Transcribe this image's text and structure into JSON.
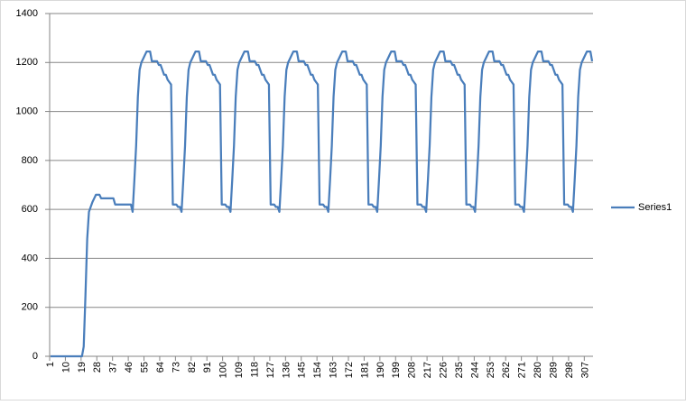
{
  "chart_data": {
    "type": "line",
    "categories": [
      "1",
      null,
      null,
      null,
      null,
      null,
      null,
      null,
      null,
      "10",
      null,
      null,
      null,
      null,
      null,
      null,
      null,
      null,
      "19",
      null,
      null,
      null,
      null,
      null,
      null,
      null,
      null,
      "28",
      null,
      null,
      null,
      null,
      null,
      null,
      null,
      null,
      "37",
      null,
      null,
      null,
      null,
      null,
      null,
      null,
      null,
      "46",
      null,
      null,
      null,
      null,
      null,
      null,
      null,
      null,
      "55",
      null,
      null,
      null,
      null,
      null,
      null,
      null,
      null,
      "64",
      null,
      null,
      null,
      null,
      null,
      null,
      null,
      null,
      "73",
      null,
      null,
      null,
      null,
      null,
      null,
      null,
      null,
      "82",
      null,
      null,
      null,
      null,
      null,
      null,
      null,
      null,
      "91",
      null,
      null,
      null,
      null,
      null,
      null,
      null,
      null,
      "100",
      null,
      null,
      null,
      null,
      null,
      null,
      null,
      null,
      "109",
      null,
      null,
      null,
      null,
      null,
      null,
      null,
      null,
      "118",
      null,
      null,
      null,
      null,
      null,
      null,
      null,
      null,
      "127",
      null,
      null,
      null,
      null,
      null,
      null,
      null,
      null,
      "136",
      null,
      null,
      null,
      null,
      null,
      null,
      null,
      null,
      "145",
      null,
      null,
      null,
      null,
      null,
      null,
      null,
      null,
      "154",
      null,
      null,
      null,
      null,
      null,
      null,
      null,
      null,
      "163",
      null,
      null,
      null,
      null,
      null,
      null,
      null,
      null,
      "172",
      null,
      null,
      null,
      null,
      null,
      null,
      null,
      null,
      "181",
      null,
      null,
      null,
      null,
      null,
      null,
      null,
      null,
      "190",
      null,
      null,
      null,
      null,
      null,
      null,
      null,
      null,
      "199",
      null,
      null,
      null,
      null,
      null,
      null,
      null,
      null,
      "208",
      null,
      null,
      null,
      null,
      null,
      null,
      null,
      null,
      "217",
      null,
      null,
      null,
      null,
      null,
      null,
      null,
      null,
      "226",
      null,
      null,
      null,
      null,
      null,
      null,
      null,
      null,
      "235",
      null,
      null,
      null,
      null,
      null,
      null,
      null,
      null,
      "244",
      null,
      null,
      null,
      null,
      null,
      null,
      null,
      null,
      "253",
      null,
      null,
      null,
      null,
      null,
      null,
      null,
      null,
      "262",
      null,
      null,
      null,
      null,
      null,
      null,
      null,
      null,
      "271",
      null,
      null,
      null,
      null,
      null,
      null,
      null,
      null,
      "280",
      null,
      null,
      null,
      null,
      null,
      null,
      null,
      null,
      "289",
      null,
      null,
      null,
      null,
      null,
      null,
      null,
      null,
      "298",
      null,
      null,
      null,
      null,
      null,
      null,
      null,
      null,
      "307",
      null,
      null,
      null,
      null
    ],
    "series": [
      {
        "name": "Series1",
        "color": "#4a7ebb",
        "values": [
          0,
          0,
          0,
          0,
          0,
          0,
          0,
          0,
          0,
          0,
          0,
          0,
          0,
          0,
          0,
          0,
          0,
          0,
          0,
          40,
          250,
          480,
          590,
          610,
          630,
          645,
          660,
          660,
          660,
          645,
          645,
          645,
          645,
          645,
          645,
          645,
          645,
          620,
          620,
          620,
          620,
          620,
          620,
          620,
          620,
          620,
          620,
          590,
          720,
          860,
          1060,
          1170,
          1200,
          1215,
          1230,
          1245,
          1245,
          1245,
          1205,
          1205,
          1205,
          1205,
          1190,
          1190,
          1170,
          1150,
          1150,
          1130,
          1120,
          1110,
          620,
          620,
          620,
          610,
          610,
          590,
          720,
          860,
          1060,
          1170,
          1200,
          1215,
          1230,
          1245,
          1245,
          1245,
          1205,
          1205,
          1205,
          1205,
          1190,
          1190,
          1170,
          1150,
          1150,
          1130,
          1120,
          1110,
          620,
          620,
          620,
          610,
          610,
          590,
          720,
          860,
          1060,
          1170,
          1200,
          1215,
          1230,
          1245,
          1245,
          1245,
          1205,
          1205,
          1205,
          1205,
          1190,
          1190,
          1170,
          1150,
          1150,
          1130,
          1120,
          1110,
          620,
          620,
          620,
          610,
          610,
          590,
          720,
          860,
          1060,
          1170,
          1200,
          1215,
          1230,
          1245,
          1245,
          1245,
          1205,
          1205,
          1205,
          1205,
          1190,
          1190,
          1170,
          1150,
          1150,
          1130,
          1120,
          1110,
          620,
          620,
          620,
          610,
          610,
          590,
          720,
          860,
          1060,
          1170,
          1200,
          1215,
          1230,
          1245,
          1245,
          1245,
          1205,
          1205,
          1205,
          1205,
          1190,
          1190,
          1170,
          1150,
          1150,
          1130,
          1120,
          1110,
          620,
          620,
          620,
          610,
          610,
          590,
          720,
          860,
          1060,
          1170,
          1200,
          1215,
          1230,
          1245,
          1245,
          1245,
          1205,
          1205,
          1205,
          1205,
          1190,
          1190,
          1170,
          1150,
          1150,
          1130,
          1120,
          1110,
          620,
          620,
          620,
          610,
          610,
          590,
          720,
          860,
          1060,
          1170,
          1200,
          1215,
          1230,
          1245,
          1245,
          1245,
          1205,
          1205,
          1205,
          1205,
          1190,
          1190,
          1170,
          1150,
          1150,
          1130,
          1120,
          1110,
          620,
          620,
          620,
          610,
          610,
          590,
          720,
          860,
          1060,
          1170,
          1200,
          1215,
          1230,
          1245,
          1245,
          1245,
          1205,
          1205,
          1205,
          1205,
          1190,
          1190,
          1170,
          1150,
          1150,
          1130,
          1120,
          1110,
          620,
          620,
          620,
          610,
          610,
          590,
          720,
          860,
          1060,
          1170,
          1200,
          1215,
          1230,
          1245,
          1245,
          1245,
          1205,
          1205,
          1205,
          1205,
          1190,
          1190,
          1170,
          1150,
          1150,
          1130,
          1120,
          1110,
          620,
          620,
          620,
          610,
          610,
          590,
          720,
          860,
          1060,
          1170,
          1200,
          1215,
          1230,
          1245,
          1245,
          1245,
          1205
        ]
      }
    ],
    "ylim": [
      0,
      1400
    ],
    "yticks": [
      0,
      200,
      400,
      600,
      800,
      1000,
      1200,
      1400
    ],
    "grid": true,
    "legend": "right"
  }
}
